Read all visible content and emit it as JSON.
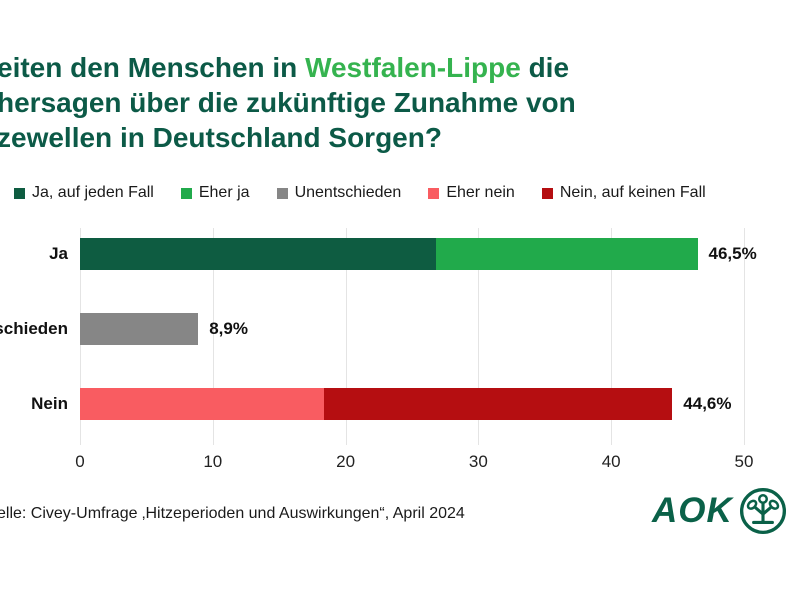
{
  "title": {
    "line1_pre": "eiten den Menschen in ",
    "line1_highlight": "Westfalen-Lippe",
    "line1_post": " die",
    "line2": "hersagen über die zukünftige Zunahme von",
    "line3": "zewellen in Deutschland Sorgen?"
  },
  "colors": {
    "title_dark_green": "#0c5a47",
    "title_bright_green": "#35b34f",
    "dark_green": "#0e5c41",
    "green": "#21aa4b",
    "gray": "#868686",
    "light_red": "#f95c61",
    "dark_red": "#b50e11",
    "gridline": "#e4e4e4",
    "aok_green": "#0a6148",
    "text_black": "#1a1a1a"
  },
  "legend": [
    {
      "label": "Ja, auf jeden Fall",
      "color": "#0e5c41"
    },
    {
      "label": "Eher ja",
      "color": "#21aa4b"
    },
    {
      "label": "Unentschieden",
      "color": "#868686"
    },
    {
      "label": "Eher nein",
      "color": "#f95c61"
    },
    {
      "label": "Nein, auf keinen Fall",
      "color": "#b50e11"
    }
  ],
  "chart_data": {
    "type": "bar",
    "orientation": "horizontal",
    "stacked": true,
    "title": "eiten den Menschen in Westfalen-Lippe die hersagen über die zukünftige Zunahme von zewellen in Deutschland Sorgen?",
    "categories": [
      "Ja",
      "schieden",
      "Nein"
    ],
    "series": [
      {
        "name": "Ja, auf jeden Fall",
        "color": "#0e5c41",
        "values": [
          26.8,
          0,
          0
        ]
      },
      {
        "name": "Eher ja",
        "color": "#21aa4b",
        "values": [
          19.7,
          0,
          0
        ]
      },
      {
        "name": "Unentschieden",
        "color": "#868686",
        "values": [
          0,
          8.9,
          0
        ]
      },
      {
        "name": "Eher nein",
        "color": "#f95c61",
        "values": [
          0,
          0,
          18.4
        ]
      },
      {
        "name": "Nein, auf keinen Fall",
        "color": "#b50e11",
        "values": [
          0,
          0,
          26.2
        ]
      }
    ],
    "bar_totals": [
      46.5,
      8.9,
      44.6
    ],
    "total_labels": [
      "46,5%",
      "8,9%",
      "44,6%"
    ],
    "x_ticks": [
      0,
      10,
      20,
      30,
      40,
      50
    ],
    "xlim": [
      0,
      50
    ],
    "grid": true,
    "legend_position": "top",
    "rows": [
      {
        "label": "Ja",
        "total": 46.5,
        "total_label": "46,5%",
        "segments": [
          {
            "name": "Ja, auf jeden Fall",
            "value": 26.8,
            "color": "#0e5c41"
          },
          {
            "name": "Eher ja",
            "value": 19.7,
            "color": "#21aa4b"
          }
        ]
      },
      {
        "label": "schieden",
        "total": 8.9,
        "total_label": "8,9%",
        "segments": [
          {
            "name": "Unentschieden",
            "value": 8.9,
            "color": "#868686"
          }
        ]
      },
      {
        "label": "Nein",
        "total": 44.6,
        "total_label": "44,6%",
        "segments": [
          {
            "name": "Eher nein",
            "value": 18.4,
            "color": "#f95c61"
          },
          {
            "name": "Nein, auf keinen Fall",
            "value": 26.2,
            "color": "#b50e11"
          }
        ]
      }
    ]
  },
  "source": "elle: Civey-Umfrage ‚Hitzeperioden und Auswirkungen“, April 2024",
  "logo": {
    "text": "AOK"
  }
}
